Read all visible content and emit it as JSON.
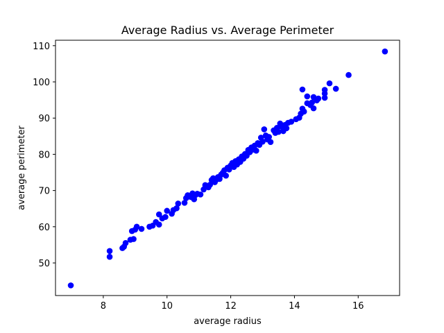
{
  "chart_data": {
    "type": "scatter",
    "title": "Average Radius vs. Average Perimeter",
    "xlabel": "average radius",
    "ylabel": "average perimeter",
    "xlim": [
      6.5,
      17.3
    ],
    "ylim": [
      41,
      111.5
    ],
    "xticks": [
      8,
      10,
      12,
      14,
      16
    ],
    "yticks": [
      50,
      60,
      70,
      80,
      90,
      100,
      110
    ],
    "marker_color": "#0000ff",
    "grid": false,
    "legend": "none",
    "points": [
      [
        6.98,
        43.8
      ],
      [
        8.2,
        51.7
      ],
      [
        8.2,
        53.3
      ],
      [
        8.6,
        54.1
      ],
      [
        8.65,
        54.5
      ],
      [
        8.7,
        55.5
      ],
      [
        8.85,
        56.4
      ],
      [
        8.95,
        56.6
      ],
      [
        8.9,
        58.8
      ],
      [
        9.0,
        59.2
      ],
      [
        9.05,
        60.0
      ],
      [
        9.2,
        59.4
      ],
      [
        9.45,
        60.0
      ],
      [
        9.55,
        60.3
      ],
      [
        9.65,
        61.3
      ],
      [
        9.75,
        60.6
      ],
      [
        9.75,
        63.4
      ],
      [
        9.85,
        62.3
      ],
      [
        9.95,
        62.7
      ],
      [
        10.0,
        64.4
      ],
      [
        10.15,
        63.6
      ],
      [
        10.2,
        64.6
      ],
      [
        10.3,
        65.1
      ],
      [
        10.35,
        66.4
      ],
      [
        10.55,
        66.6
      ],
      [
        10.6,
        67.9
      ],
      [
        10.65,
        68.7
      ],
      [
        10.75,
        68.2
      ],
      [
        10.8,
        69.2
      ],
      [
        10.85,
        67.6
      ],
      [
        10.9,
        68.8
      ],
      [
        10.95,
        69.1
      ],
      [
        11.05,
        68.9
      ],
      [
        11.15,
        70.3
      ],
      [
        11.2,
        71.5
      ],
      [
        11.3,
        70.9
      ],
      [
        11.35,
        71.6
      ],
      [
        11.4,
        72.9
      ],
      [
        11.45,
        73.4
      ],
      [
        11.5,
        72.3
      ],
      [
        11.55,
        73.0
      ],
      [
        11.6,
        73.7
      ],
      [
        11.65,
        73.2
      ],
      [
        11.7,
        74.4
      ],
      [
        11.75,
        74.9
      ],
      [
        11.8,
        75.6
      ],
      [
        11.85,
        74.1
      ],
      [
        11.9,
        76.3
      ],
      [
        11.95,
        75.8
      ],
      [
        12.0,
        76.9
      ],
      [
        12.05,
        77.6
      ],
      [
        12.1,
        76.5
      ],
      [
        12.15,
        78.1
      ],
      [
        12.2,
        77.2
      ],
      [
        12.25,
        78.6
      ],
      [
        12.3,
        77.9
      ],
      [
        12.35,
        79.4
      ],
      [
        12.4,
        78.8
      ],
      [
        12.45,
        80.1
      ],
      [
        12.5,
        79.6
      ],
      [
        12.55,
        81.2
      ],
      [
        12.6,
        80.6
      ],
      [
        12.65,
        81.9
      ],
      [
        12.7,
        81.3
      ],
      [
        12.75,
        82.4
      ],
      [
        12.8,
        81.0
      ],
      [
        12.85,
        83.1
      ],
      [
        12.9,
        82.6
      ],
      [
        12.95,
        84.6
      ],
      [
        13.0,
        83.5
      ],
      [
        13.05,
        86.9
      ],
      [
        13.1,
        85.2
      ],
      [
        13.15,
        84.1
      ],
      [
        13.2,
        84.8
      ],
      [
        13.25,
        83.4
      ],
      [
        13.35,
        86.6
      ],
      [
        13.4,
        85.9
      ],
      [
        13.45,
        87.3
      ],
      [
        13.5,
        86.2
      ],
      [
        13.55,
        88.5
      ],
      [
        13.6,
        87.6
      ],
      [
        13.65,
        86.4
      ],
      [
        13.7,
        88.1
      ],
      [
        13.75,
        87.2
      ],
      [
        13.8,
        88.7
      ],
      [
        13.9,
        89.0
      ],
      [
        14.05,
        89.7
      ],
      [
        14.15,
        90.1
      ],
      [
        14.2,
        91.2
      ],
      [
        14.25,
        92.6
      ],
      [
        14.3,
        91.8
      ],
      [
        14.25,
        97.9
      ],
      [
        14.4,
        96.0
      ],
      [
        14.4,
        94.1
      ],
      [
        14.5,
        93.6
      ],
      [
        14.55,
        94.3
      ],
      [
        14.6,
        92.7
      ],
      [
        14.6,
        95.8
      ],
      [
        14.7,
        94.9
      ],
      [
        14.75,
        95.4
      ],
      [
        14.95,
        95.6
      ],
      [
        14.95,
        96.8
      ],
      [
        14.95,
        97.8
      ],
      [
        15.1,
        99.6
      ],
      [
        15.3,
        98.1
      ],
      [
        15.7,
        101.9
      ],
      [
        16.84,
        108.4
      ]
    ]
  }
}
